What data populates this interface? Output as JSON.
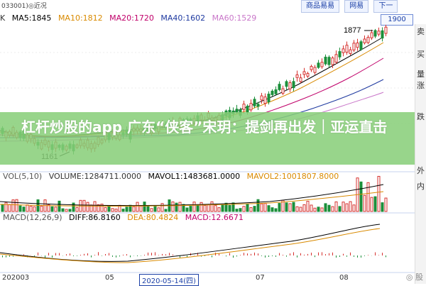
{
  "header": {
    "stock_code": "033001)◎近况",
    "links": [
      "商品易易",
      "网易",
      "下一"
    ],
    "price_box": "1900"
  },
  "ma_row": {
    "symbol": "K",
    "items": [
      {
        "label": "MA5:1845",
        "color": "#000000"
      },
      {
        "label": "MA10:1812",
        "color": "#d98a00"
      },
      {
        "label": "MA20:1720",
        "color": "#c0006a"
      },
      {
        "label": "MA40:1602",
        "color": "#1f3aa0"
      },
      {
        "label": "MA60:1529",
        "color": "#c977c9"
      }
    ]
  },
  "chart_labels": {
    "high": "1877",
    "low": "1161"
  },
  "banner": {
    "title": "杠杆炒股的app 广东“侠客”宋玥：提剑再出发｜亚运直击"
  },
  "volume_row": {
    "items": [
      {
        "label": "VOL(5,10)",
        "color": "#555555"
      },
      {
        "label": "VOLUME:1284711.0000",
        "color": "#333333"
      },
      {
        "label": "MAVOL1:1483681.0000",
        "color": "#000000"
      },
      {
        "label": "MAVOL2:1001807.8000",
        "color": "#d98a00"
      }
    ]
  },
  "macd_row": {
    "items": [
      {
        "label": "MACD(12,26,9)",
        "color": "#555555"
      },
      {
        "label": "DIFF:86.8160",
        "color": "#000000"
      },
      {
        "label": "DEA:80.4824",
        "color": "#d98a00"
      },
      {
        "label": "MACD:12.6671",
        "color": "#c0006a"
      }
    ]
  },
  "date_axis": {
    "labels": [
      "202003",
      "05",
      "07",
      "08"
    ],
    "cursor": "2020-05-14(四)"
  },
  "right_panel": {
    "items": [
      "卖",
      "买",
      "量",
      "涨",
      "跌",
      "外",
      "内"
    ]
  },
  "watermark": "◎ 股"
}
